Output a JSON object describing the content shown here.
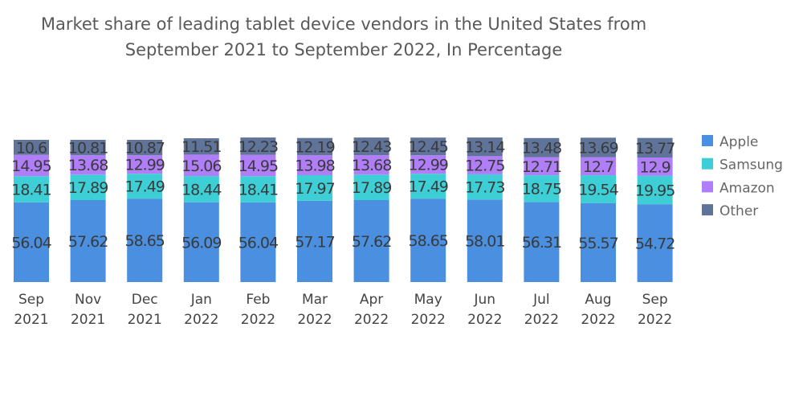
{
  "chart_data": {
    "type": "bar",
    "stacked": true,
    "title": "Market share of leading tablet device vendors in the United States from September 2021 to September 2022, In Percentage",
    "title_lines": [
      "Market share of leading tablet device vendors in the United States from",
      "September 2021 to September 2022, In Percentage"
    ],
    "categories": [
      [
        "Sep",
        "2021"
      ],
      [
        "Nov",
        "2021"
      ],
      [
        "Dec",
        "2021"
      ],
      [
        "Jan",
        "2022"
      ],
      [
        "Feb",
        "2022"
      ],
      [
        "Mar",
        "2022"
      ],
      [
        "Apr",
        "2022"
      ],
      [
        "May",
        "2022"
      ],
      [
        "Jun",
        "2022"
      ],
      [
        "Jul",
        "2022"
      ],
      [
        "Aug",
        "2022"
      ],
      [
        "Sep",
        "2022"
      ]
    ],
    "series": [
      {
        "name": "Apple",
        "color": "#4a8fe0",
        "values": [
          56.04,
          57.62,
          58.65,
          56.09,
          56.04,
          57.17,
          57.62,
          58.65,
          58.01,
          56.31,
          55.57,
          54.72
        ]
      },
      {
        "name": "Samsung",
        "color": "#3ecfd6",
        "values": [
          18.41,
          17.89,
          17.49,
          18.44,
          18.41,
          17.97,
          17.89,
          17.49,
          17.73,
          18.75,
          19.54,
          19.95
        ]
      },
      {
        "name": "Amazon",
        "color": "#b07ef8",
        "values": [
          14.95,
          13.68,
          12.99,
          15.06,
          14.95,
          13.98,
          13.68,
          12.99,
          12.75,
          12.71,
          12.7,
          12.9
        ]
      },
      {
        "name": "Other",
        "color": "#60749a",
        "values": [
          10.6,
          10.81,
          10.87,
          11.51,
          12.23,
          12.19,
          12.43,
          12.45,
          13.14,
          13.48,
          13.69,
          13.77
        ]
      }
    ],
    "xlabel": "",
    "ylabel": "",
    "grid": false,
    "legend": "right"
  }
}
